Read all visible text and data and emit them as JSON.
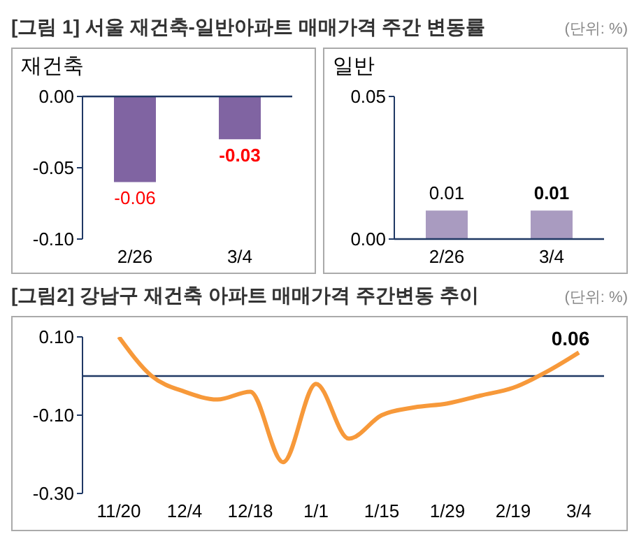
{
  "chart_data": [
    {
      "type": "bar",
      "title": "[그림 1] 서울 재건축-일반아파트 매매가격 주간 변동률",
      "subtitle": "재건축",
      "annotations": [
        "(단위: %)"
      ],
      "categories": [
        "2/26",
        "3/4"
      ],
      "values": [
        -0.06,
        -0.03
      ],
      "color": "#8064a2",
      "ylim": [
        -0.1,
        0
      ],
      "yticks": [
        {
          "value": 0,
          "label": "0.00"
        },
        -0.05,
        {
          "value": -0.1,
          "label": "-0.10"
        }
      ],
      "data_labels": true
    },
    {
      "type": "bar",
      "subtitle": "일반",
      "categories": [
        "2/26",
        "3/4"
      ],
      "values": [
        0.01,
        0.01
      ],
      "color": "#a99bc0",
      "ylim": [
        0,
        0.05
      ],
      "yticks": [
        {
          "value": 0,
          "label": "0.00"
        },
        0.05
      ],
      "data_labels": true
    },
    {
      "type": "line",
      "title": "[그림2] 강남구 재건축 아파트 매매가격 주간변동 추이",
      "annotations": [
        "(단위: %)",
        {
          "text": "0.06",
          "x": "3/4",
          "y": 0.06
        }
      ],
      "categories": [
        "11/20",
        null,
        "12/4",
        null,
        "12/18",
        null,
        "1/1",
        null,
        "1/15",
        null,
        "1/29",
        null,
        "2/19",
        null,
        "3/4"
      ],
      "series": [
        {
          "color": "#f7993a",
          "values": [
            0.1,
            0.0,
            -0.04,
            -0.06,
            -0.04,
            -0.22,
            -0.02,
            -0.16,
            -0.1,
            -0.08,
            -0.07,
            -0.05,
            -0.03,
            0.01,
            0.06
          ]
        }
      ],
      "ylim": [
        -0.3,
        0.1
      ],
      "yticks": [
        {
          "value": 0.1,
          "label": "0.10"
        },
        {
          "value": -0.1,
          "label": "-0.10"
        },
        {
          "value": -0.3,
          "label": "-0.30"
        }
      ],
      "ref_lines": [
        {
          "axis": "y",
          "value": 0,
          "color": "#1f3864"
        }
      ],
      "marker": "none"
    }
  ]
}
